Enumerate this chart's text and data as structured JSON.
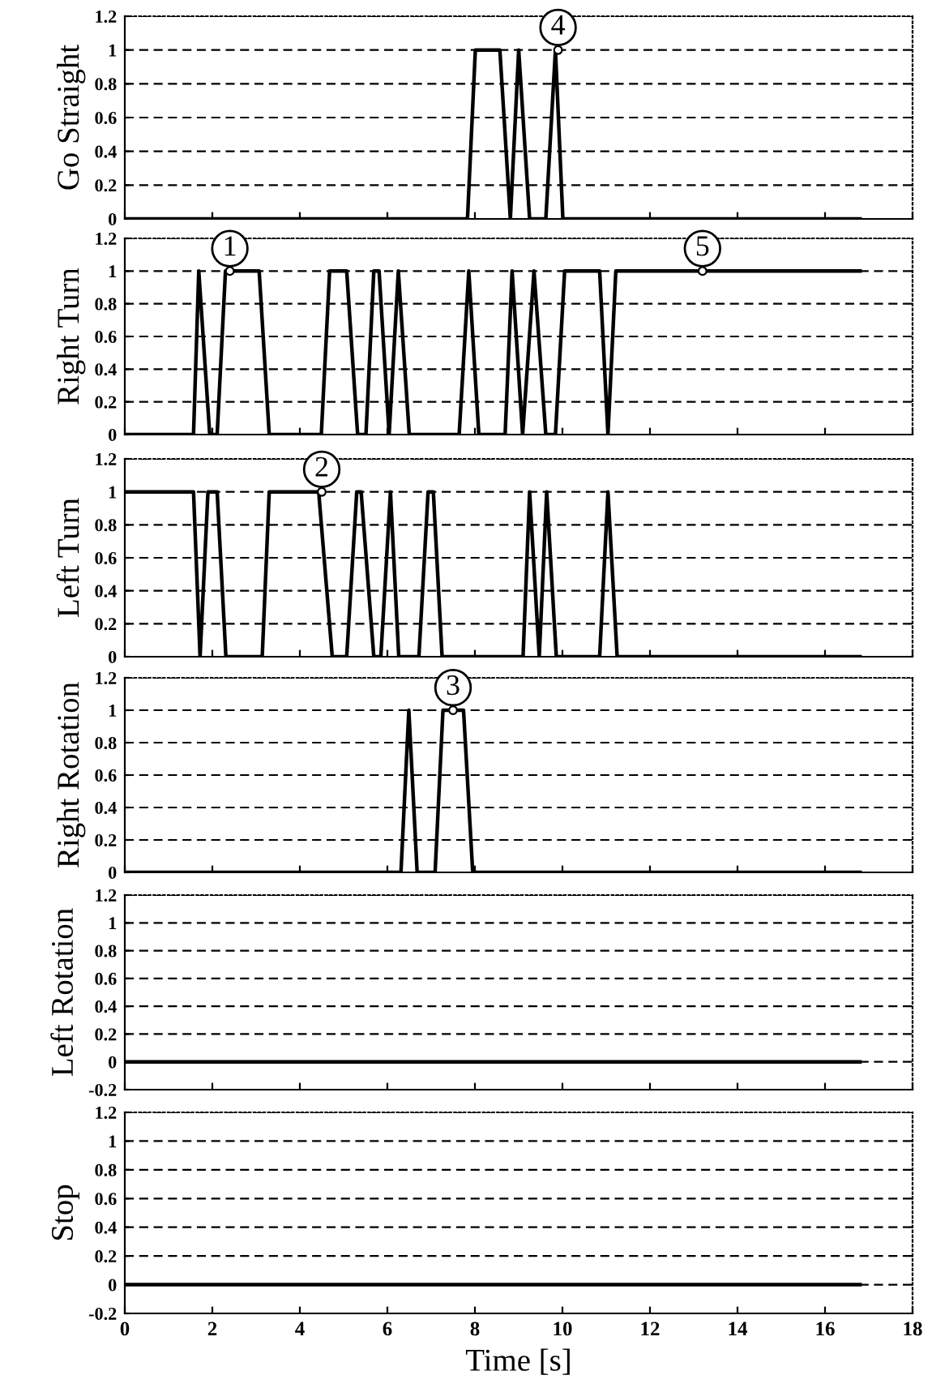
{
  "chart_data": [
    {
      "type": "line",
      "ylabel": "Go Straight",
      "x": [
        0,
        7.83,
        8.01,
        8.57,
        8.81,
        9.0,
        9.25,
        9.62,
        9.84,
        10.01,
        16.8
      ],
      "series": [
        {
          "color": "#000000",
          "values": [
            0,
            0,
            1,
            1,
            0,
            1,
            0,
            0,
            1,
            0,
            0
          ]
        }
      ],
      "xlim": [
        0,
        18
      ],
      "xticks": [
        0,
        2,
        4,
        6,
        8,
        10,
        12,
        14,
        16,
        18
      ],
      "ylim": [
        0,
        1.2
      ],
      "yticks": [
        0,
        0.2,
        0.4,
        0.6,
        0.8,
        1,
        1.2
      ],
      "grid": "y",
      "tick_labels": "y",
      "annotations": [
        {
          "text": "4",
          "x": 9.9,
          "y": 1
        }
      ]
    },
    {
      "type": "line",
      "ylabel": "Right Turn",
      "x": [
        0,
        1.57,
        1.69,
        1.94,
        2.11,
        2.3,
        3.07,
        3.3,
        4.49,
        4.68,
        5.07,
        5.32,
        5.51,
        5.69,
        5.81,
        6.04,
        6.25,
        6.5,
        7.64,
        7.86,
        8.09,
        8.69,
        8.85,
        9.09,
        9.35,
        9.62,
        9.84,
        10.05,
        10.85,
        11.04,
        11.22,
        16.8
      ],
      "series": [
        {
          "color": "#000000",
          "values": [
            0,
            0,
            1,
            0,
            0,
            1,
            1,
            0,
            0,
            1,
            1,
            0,
            0,
            1,
            1,
            0,
            1,
            0,
            0,
            1,
            0,
            0,
            1,
            0,
            1,
            0,
            0,
            1,
            1,
            0,
            1,
            1
          ]
        }
      ],
      "xlim": [
        0,
        18
      ],
      "xticks": [
        0,
        2,
        4,
        6,
        8,
        10,
        12,
        14,
        16,
        18
      ],
      "ylim": [
        0,
        1.2
      ],
      "yticks": [
        0,
        0.2,
        0.4,
        0.6,
        0.8,
        1,
        1.2
      ],
      "grid": "y",
      "tick_labels": "y",
      "annotations": [
        {
          "text": "1",
          "x": 2.4,
          "y": 1
        },
        {
          "text": "5",
          "x": 13.2,
          "y": 1
        }
      ]
    },
    {
      "type": "line",
      "ylabel": "Left Turn",
      "x": [
        0,
        1.57,
        1.72,
        1.9,
        2.11,
        2.31,
        3.14,
        3.3,
        4.43,
        4.74,
        5.07,
        5.3,
        5.4,
        5.69,
        5.85,
        6.07,
        6.26,
        6.72,
        6.93,
        7.05,
        7.25,
        9.1,
        9.25,
        9.47,
        9.64,
        9.86,
        10.85,
        11.04,
        11.25,
        16.8
      ],
      "series": [
        {
          "color": "#000000",
          "values": [
            1,
            1,
            0,
            1,
            1,
            0,
            0,
            1,
            1,
            0,
            0,
            1,
            1,
            0,
            0,
            1,
            0,
            0,
            1,
            1,
            0,
            0,
            1,
            0,
            1,
            0,
            0,
            1,
            0,
            0
          ]
        }
      ],
      "xlim": [
        0,
        18
      ],
      "xticks": [
        0,
        2,
        4,
        6,
        8,
        10,
        12,
        14,
        16,
        18
      ],
      "ylim": [
        0,
        1.2
      ],
      "yticks": [
        0,
        0.2,
        0.4,
        0.6,
        0.8,
        1,
        1.2
      ],
      "grid": "y",
      "tick_labels": "y",
      "annotations": [
        {
          "text": "2",
          "x": 4.5,
          "y": 1
        }
      ]
    },
    {
      "type": "line",
      "ylabel": "Right Rotation",
      "x": [
        0,
        6.31,
        6.49,
        6.68,
        7.09,
        7.27,
        7.74,
        7.95,
        16.8
      ],
      "series": [
        {
          "color": "#000000",
          "values": [
            0,
            0,
            1,
            0,
            0,
            1,
            1,
            0,
            0
          ]
        }
      ],
      "xlim": [
        0,
        18
      ],
      "xticks": [
        0,
        2,
        4,
        6,
        8,
        10,
        12,
        14,
        16,
        18
      ],
      "ylim": [
        0,
        1.2
      ],
      "yticks": [
        0,
        0.2,
        0.4,
        0.6,
        0.8,
        1,
        1.2
      ],
      "grid": "y",
      "tick_labels": "y",
      "annotations": [
        {
          "text": "3",
          "x": 7.5,
          "y": 1
        }
      ]
    },
    {
      "type": "line",
      "ylabel": "Left Rotation",
      "x": [
        0,
        16.8
      ],
      "series": [
        {
          "color": "#000000",
          "values": [
            0,
            0
          ]
        }
      ],
      "xlim": [
        0,
        18
      ],
      "xticks": [
        0,
        2,
        4,
        6,
        8,
        10,
        12,
        14,
        16,
        18
      ],
      "ylim": [
        -0.2,
        1.2
      ],
      "yticks": [
        -0.2,
        0,
        0.2,
        0.4,
        0.6,
        0.8,
        1,
        1.2
      ],
      "grid": "y",
      "tick_labels": "y"
    },
    {
      "type": "line",
      "ylabel": "Stop",
      "xlabel": "Time [s]",
      "x": [
        0,
        16.8
      ],
      "series": [
        {
          "color": "#000000",
          "values": [
            0,
            0
          ]
        }
      ],
      "xlim": [
        0,
        18
      ],
      "xticks": [
        0,
        2,
        4,
        6,
        8,
        10,
        12,
        14,
        16,
        18
      ],
      "ylim": [
        -0.2,
        1.2
      ],
      "yticks": [
        -0.2,
        0,
        0.2,
        0.4,
        0.6,
        0.8,
        1,
        1.2
      ],
      "grid": "y"
    }
  ]
}
